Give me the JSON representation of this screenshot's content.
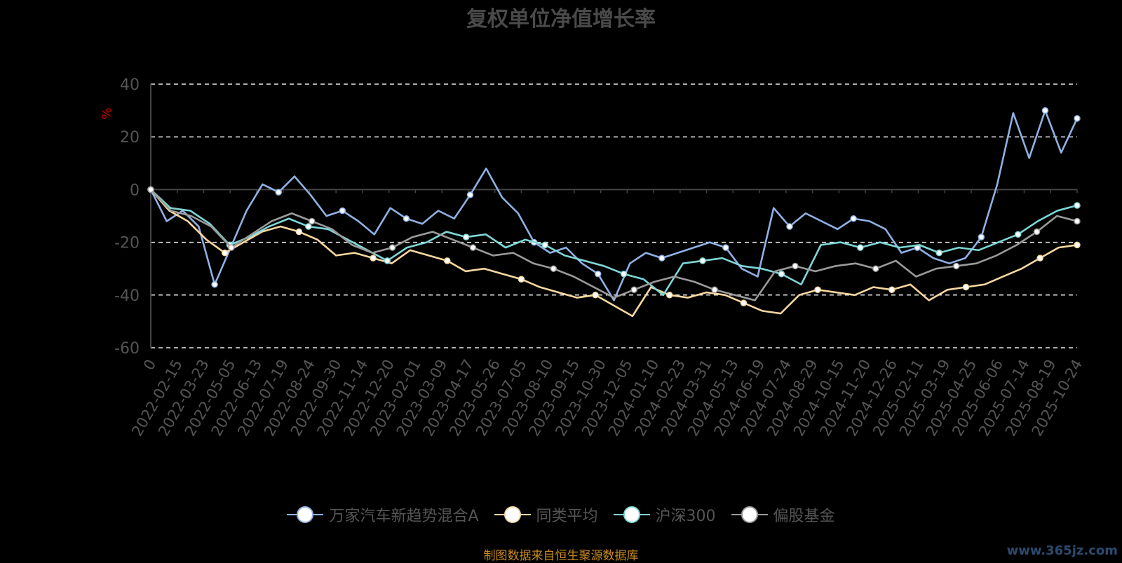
{
  "chart_data": {
    "type": "line",
    "title": "复权单位净值增长率",
    "ylabel": "%",
    "ylim": [
      -60,
      40
    ],
    "yticks": [
      40,
      20,
      0,
      -20,
      -40,
      -60
    ],
    "grid": "horizontal-dashed",
    "legend_position": "bottom",
    "x_tick_labels": [
      "0",
      "2022-02-15",
      "2022-03-23",
      "2022-05-05",
      "2022-06-13",
      "2022-07-19",
      "2022-08-24",
      "2022-09-30",
      "2022-11-14",
      "2022-12-20",
      "2023-02-01",
      "2023-03-09",
      "2023-04-17",
      "2023-05-26",
      "2023-07-05",
      "2023-08-10",
      "2023-09-15",
      "2023-10-30",
      "2023-12-05",
      "2024-01-10",
      "2024-02-23",
      "2024-03-31",
      "2024-05-13",
      "2024-06-19",
      "2024-07-24",
      "2024-08-29",
      "2024-10-15",
      "2024-11-20",
      "2024-12-26",
      "2025-02-11",
      "2025-03-19",
      "2025-04-25",
      "2025-06-06",
      "2025-07-14",
      "2025-08-19",
      "2025-10-24"
    ],
    "series": [
      {
        "name": "万家汽车新趋势混合A",
        "color": "#8fb1e3",
        "values": [
          0,
          -12,
          -8,
          -14,
          -36,
          -22,
          -8,
          2,
          -1,
          5,
          -2,
          -10,
          -8,
          -12,
          -17,
          -7,
          -11,
          -13,
          -8,
          -11,
          -2,
          8,
          -3,
          -9,
          -20,
          -24,
          -22,
          -28,
          -32,
          -42,
          -28,
          -24,
          -26,
          -24,
          -22,
          -20,
          -22,
          -30,
          -33,
          -7,
          -14,
          -9,
          -12,
          -15,
          -11,
          -12,
          -15,
          -24,
          -22,
          -26,
          -28,
          -26,
          -18,
          2,
          29,
          12,
          30,
          14,
          27
        ]
      },
      {
        "name": "同类平均",
        "color": "#f7d7a0",
        "values": [
          0,
          -8,
          -12,
          -19,
          -24,
          -20,
          -16,
          -14,
          -16,
          -19,
          -25,
          -24,
          -26,
          -28,
          -23,
          -25,
          -27,
          -31,
          -30,
          -32,
          -34,
          -37,
          -39,
          -41,
          -40,
          -44,
          -48,
          -37,
          -40,
          -41,
          -39,
          -40,
          -43,
          -46,
          -47,
          -40,
          -38,
          -39,
          -40,
          -37,
          -38,
          -36,
          -42,
          -38,
          -37,
          -36,
          -33,
          -30,
          -26,
          -22,
          -21
        ]
      },
      {
        "name": "沪深300",
        "color": "#7fd6d6",
        "values": [
          0,
          -7,
          -8,
          -13,
          -21,
          -18,
          -14,
          -11,
          -14,
          -15,
          -19,
          -23,
          -27,
          -22,
          -20,
          -16,
          -18,
          -17,
          -22,
          -19,
          -21,
          -25,
          -27,
          -29,
          -32,
          -34,
          -40,
          -28,
          -27,
          -26,
          -29,
          -30,
          -32,
          -36,
          -21,
          -20,
          -22,
          -20,
          -22,
          -21,
          -24,
          -22,
          -23,
          -20,
          -17,
          -12,
          -8,
          -6
        ]
      },
      {
        "name": "偏股基金",
        "color": "#9a9a9a",
        "values": [
          0,
          -8,
          -10,
          -14,
          -22,
          -17,
          -12,
          -9,
          -12,
          -15,
          -21,
          -24,
          -22,
          -18,
          -16,
          -19,
          -22,
          -25,
          -24,
          -28,
          -30,
          -33,
          -37,
          -41,
          -38,
          -35,
          -33,
          -35,
          -38,
          -40,
          -42,
          -31,
          -29,
          -31,
          -29,
          -28,
          -30,
          -27,
          -33,
          -30,
          -29,
          -28,
          -25,
          -21,
          -16,
          -10,
          -12
        ]
      }
    ]
  },
  "footer": {
    "source_text": "制图数据来自恒生聚源数据库",
    "watermark": "www.365jz.com"
  }
}
